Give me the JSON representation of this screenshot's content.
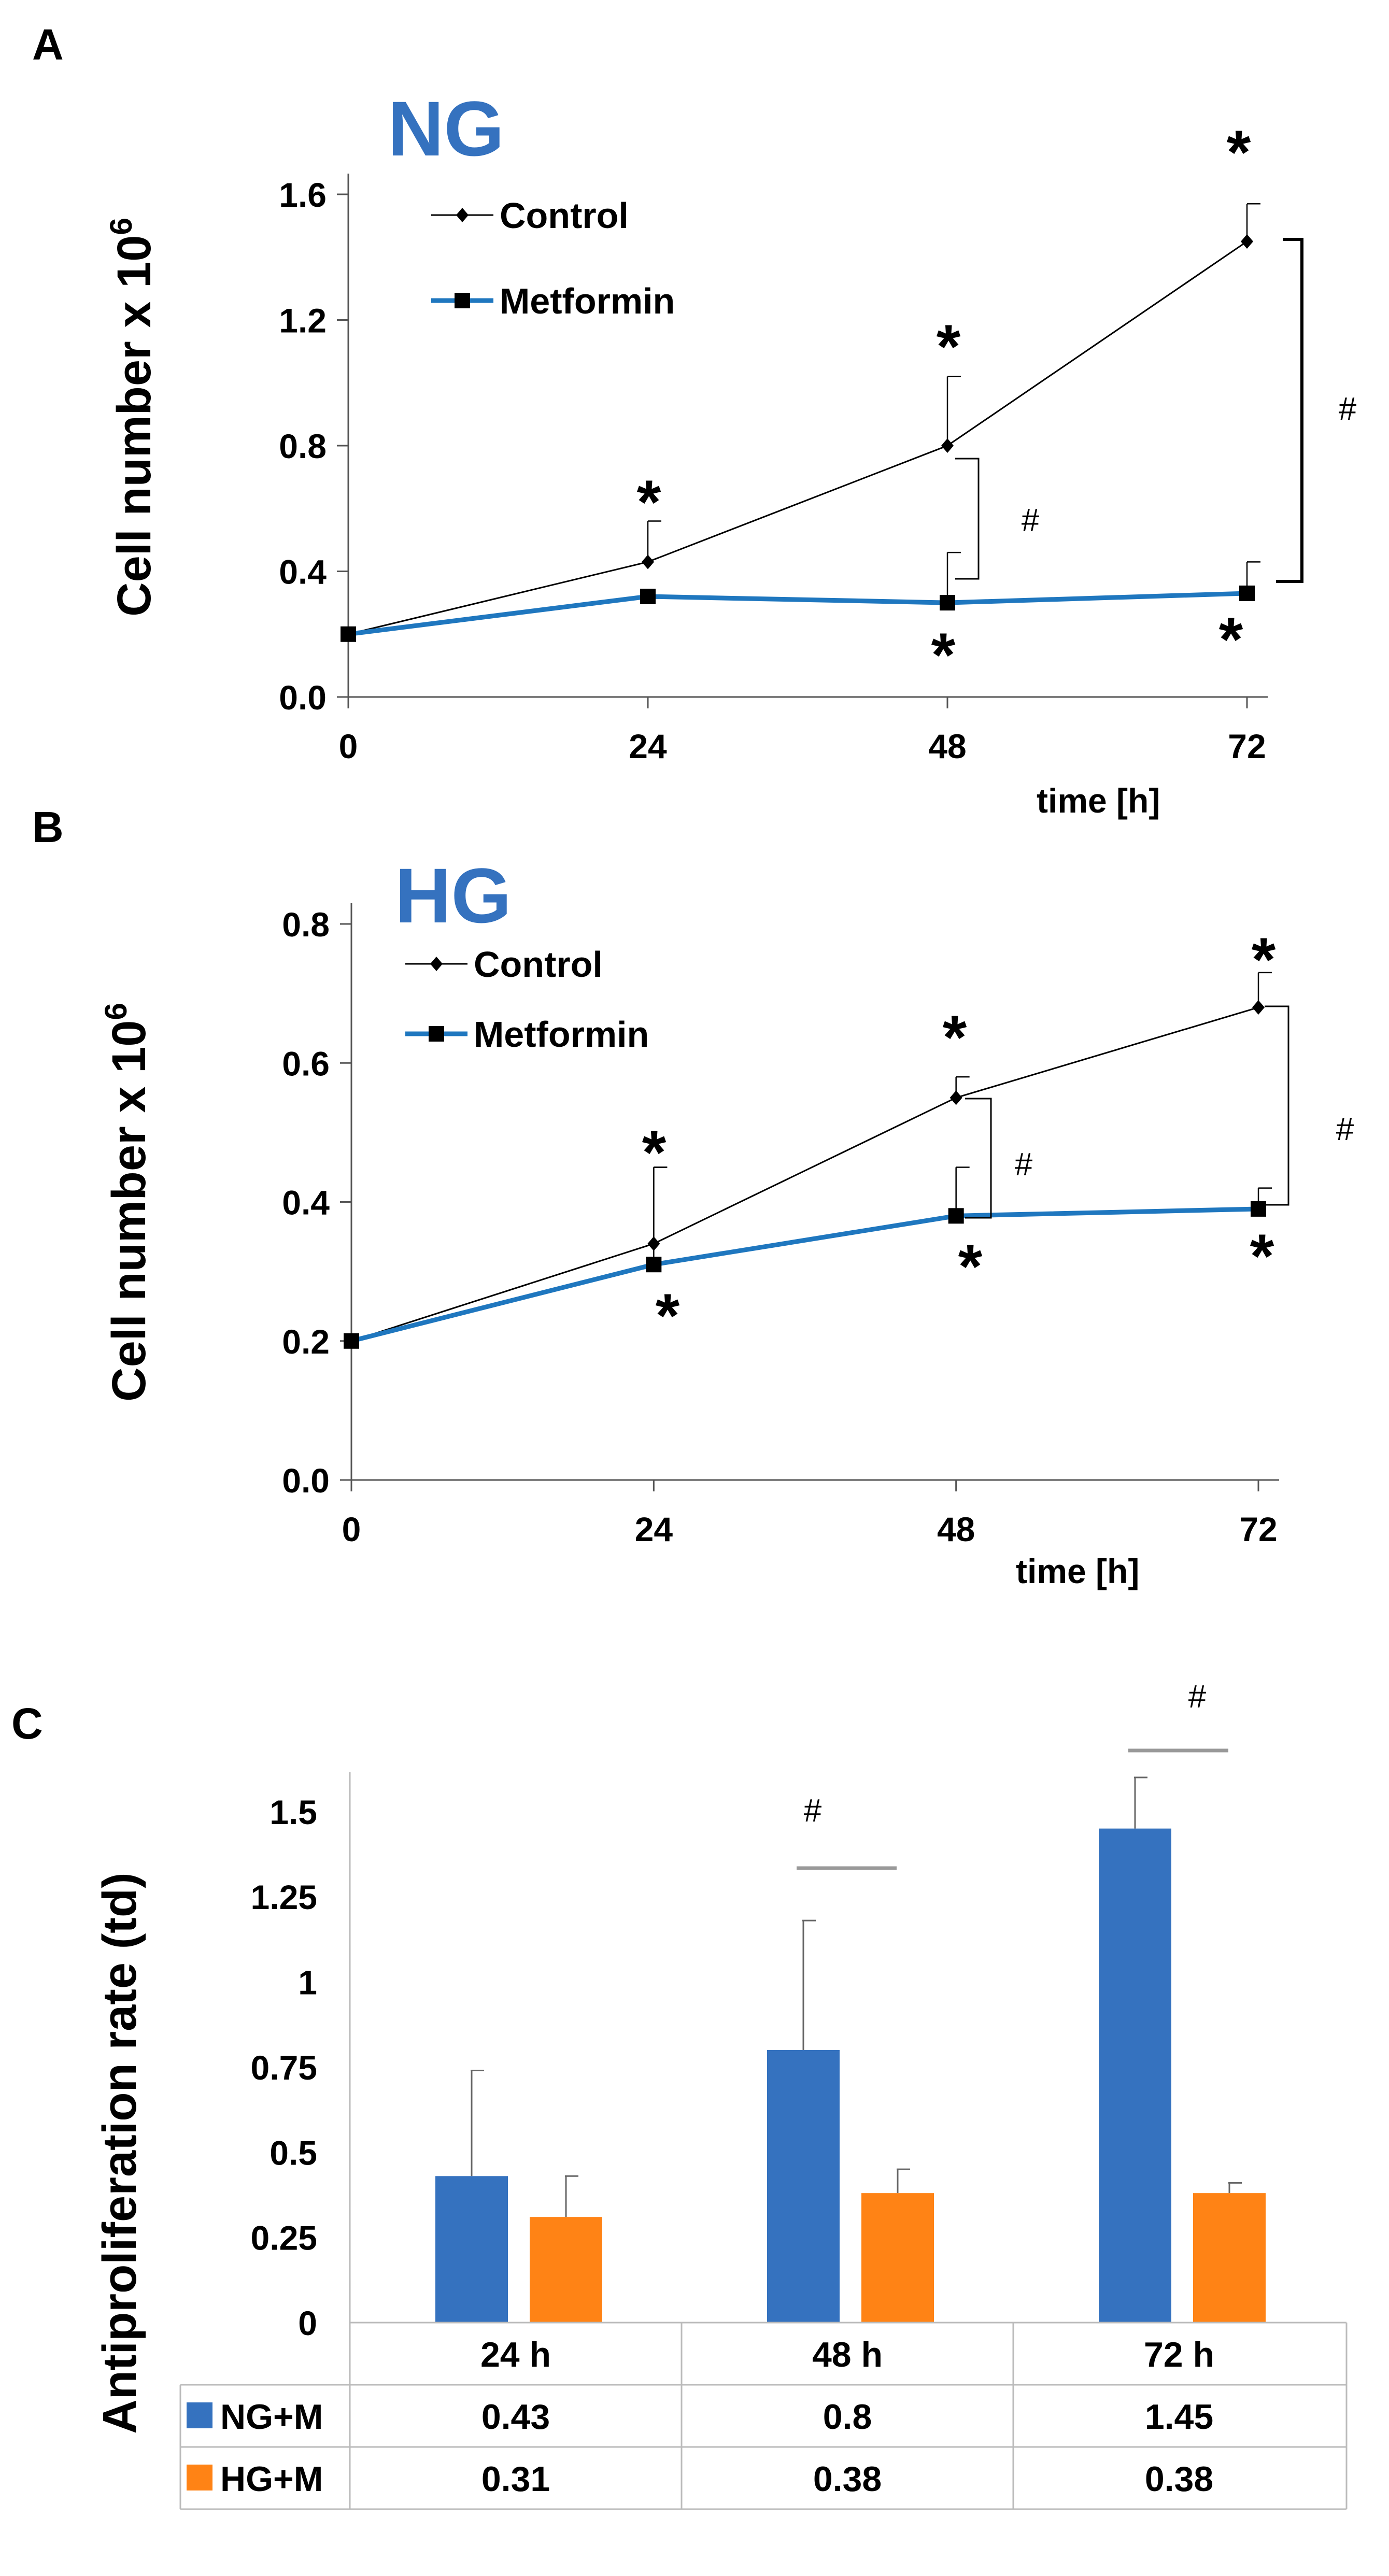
{
  "chart_data": [
    {
      "panel": "A",
      "type": "line",
      "title": "NG",
      "xlabel": "time [h]",
      "ylabel": "Cell number x 10",
      "ylabel_exponent": "6",
      "x": [
        0,
        24,
        48,
        72
      ],
      "x_ticks": [
        "0",
        "24",
        "48",
        "72"
      ],
      "y_ticks": [
        "0.0",
        "0.4",
        "0.8",
        "1.2",
        "1.6"
      ],
      "ylim": [
        0,
        1.6
      ],
      "series": [
        {
          "name": "Control",
          "color": "#000000",
          "marker": "diamond",
          "values": [
            0.2,
            0.43,
            0.8,
            1.45
          ],
          "err": [
            0,
            0.13,
            0.22,
            0.12
          ]
        },
        {
          "name": "Metformin",
          "color": "#1F77BF",
          "marker": "square",
          "values": [
            0.2,
            0.32,
            0.3,
            0.33
          ],
          "err": [
            0,
            0,
            0.16,
            0.1
          ]
        }
      ],
      "stars": [
        "*",
        "*",
        "*",
        "*",
        "*"
      ],
      "hashes": [
        "#",
        "#"
      ]
    },
    {
      "panel": "B",
      "type": "line",
      "title": "HG",
      "xlabel": "time [h]",
      "ylabel": "Cell number x 10",
      "ylabel_exponent": "6",
      "x": [
        0,
        24,
        48,
        72
      ],
      "x_ticks": [
        "0",
        "24",
        "48",
        "72"
      ],
      "y_ticks": [
        "0.0",
        "0.2",
        "0.4",
        "0.6",
        "0.8"
      ],
      "ylim": [
        0,
        0.8
      ],
      "series": [
        {
          "name": "Control",
          "color": "#000000",
          "marker": "diamond",
          "values": [
            0.2,
            0.34,
            0.55,
            0.68
          ],
          "err": [
            0,
            0.11,
            0.03,
            0.05
          ]
        },
        {
          "name": "Metformin",
          "color": "#1F77BF",
          "marker": "square",
          "values": [
            0.2,
            0.31,
            0.38,
            0.39
          ],
          "err": [
            0,
            0.14,
            0.07,
            0.03
          ]
        }
      ],
      "stars": [
        "*",
        "*",
        "*",
        "*",
        "*",
        "*"
      ],
      "hashes": [
        "#",
        "#"
      ]
    },
    {
      "panel": "C",
      "type": "bar",
      "ylabel": "Antiproliferation rate (td)",
      "categories": [
        "24 h",
        "48 h",
        "72 h"
      ],
      "y_ticks": [
        "0",
        "0.25",
        "0.5",
        "0.75",
        "1",
        "1.25",
        "1.5"
      ],
      "ylim": [
        0,
        1.6
      ],
      "series": [
        {
          "name": "NG+M",
          "color": "#3572BF",
          "values": [
            0.43,
            0.8,
            1.45
          ],
          "labels": [
            "0.43",
            "0.8",
            "1.45"
          ],
          "err": [
            0.31,
            0.38,
            0.15
          ]
        },
        {
          "name": "HG+M",
          "color": "#FF8315",
          "values": [
            0.31,
            0.38,
            0.38
          ],
          "labels": [
            "0.31",
            "0.38",
            "0.38"
          ],
          "err": [
            0.12,
            0.07,
            0.03
          ]
        }
      ],
      "hashes": [
        "#",
        "#"
      ]
    }
  ]
}
